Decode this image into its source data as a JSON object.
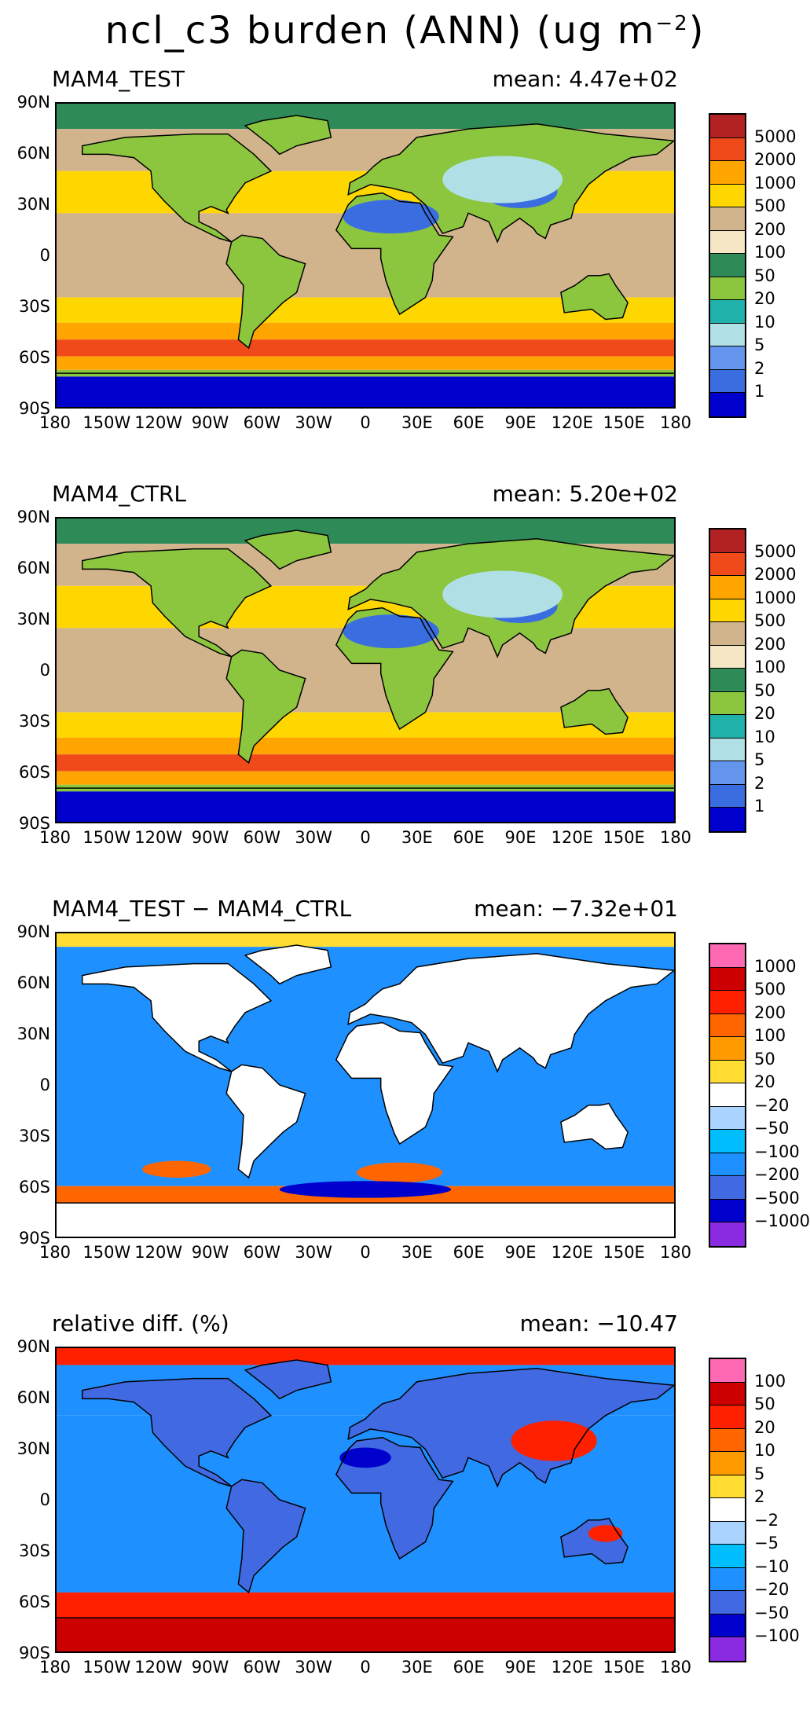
{
  "title": "ncl_c3 burden (ANN) (ug m",
  "title_unit_exp": "−2",
  "title_close": ")",
  "lat_ticks": [
    "90N",
    "60N",
    "30N",
    "0",
    "30S",
    "60S",
    "90S"
  ],
  "lon_ticks": [
    "180",
    "150W",
    "120W",
    "90W",
    "60W",
    "30W",
    "0",
    "30E",
    "60E",
    "90E",
    "120E",
    "150E",
    "180"
  ],
  "panels": [
    {
      "label": "MAM4_TEST",
      "mean": "mean: 4.47e+02",
      "colorbar": {
        "labels": [
          "5000",
          "2000",
          "1000",
          "500",
          "200",
          "100",
          "50",
          "20",
          "10",
          "5",
          "2",
          "1"
        ],
        "colors": [
          "#b22222",
          "#f04a1b",
          "#ffa500",
          "#ffd700",
          "#d2b48c",
          "#f5e6c4",
          "#2e8b57",
          "#8cc63f",
          "#20b2aa",
          "#b0e0e6",
          "#6495ed",
          "#3a6ee0",
          "#0000cd"
        ]
      }
    },
    {
      "label": "MAM4_CTRL",
      "mean": "mean: 5.20e+02",
      "colorbar": {
        "labels": [
          "5000",
          "2000",
          "1000",
          "500",
          "200",
          "100",
          "50",
          "20",
          "10",
          "5",
          "2",
          "1"
        ],
        "colors": [
          "#b22222",
          "#f04a1b",
          "#ffa500",
          "#ffd700",
          "#d2b48c",
          "#f5e6c4",
          "#2e8b57",
          "#8cc63f",
          "#20b2aa",
          "#b0e0e6",
          "#6495ed",
          "#3a6ee0",
          "#0000cd"
        ]
      }
    },
    {
      "label": "MAM4_TEST − MAM4_CTRL",
      "mean": "mean: −7.32e+01",
      "colorbar": {
        "labels": [
          "1000",
          "500",
          "200",
          "100",
          "50",
          "20",
          "−20",
          "−50",
          "−100",
          "−200",
          "−500",
          "−1000"
        ],
        "colors": [
          "#ff69b4",
          "#cc0000",
          "#ff2000",
          "#ff6600",
          "#ff9900",
          "#ffdd33",
          "#ffffff",
          "#aad4ff",
          "#00bfff",
          "#1e90ff",
          "#4169e1",
          "#0000cd",
          "#8a2be2"
        ]
      }
    },
    {
      "label": "relative diff. (%)",
      "mean": "mean: −10.47",
      "colorbar": {
        "labels": [
          "100",
          "50",
          "20",
          "10",
          "5",
          "2",
          "−2",
          "−5",
          "−10",
          "−20",
          "−50",
          "−100"
        ],
        "colors": [
          "#ff69b4",
          "#cc0000",
          "#ff2000",
          "#ff6600",
          "#ff9900",
          "#ffdd33",
          "#ffffff",
          "#aad4ff",
          "#00bfff",
          "#1e90ff",
          "#4169e1",
          "#0000cd",
          "#8a2be2"
        ]
      }
    }
  ]
}
